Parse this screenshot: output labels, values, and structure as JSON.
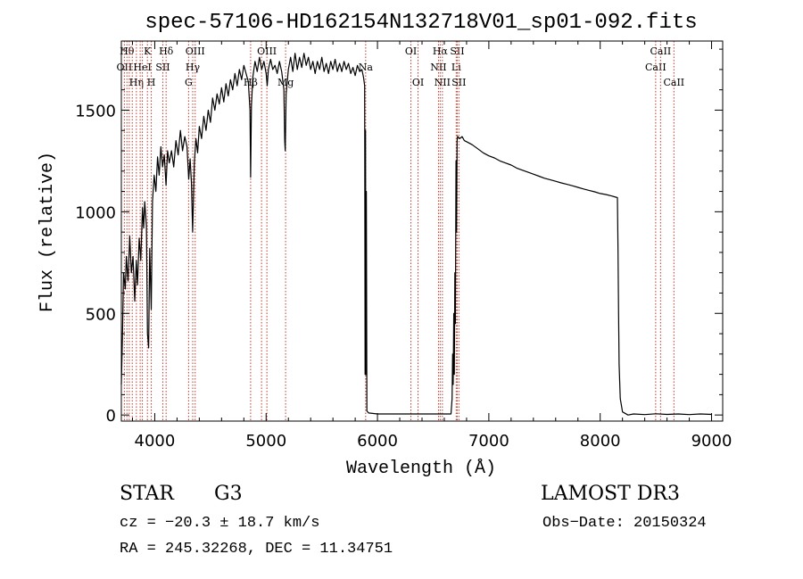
{
  "chart_data": {
    "type": "line",
    "title": "spec-57106-HD162154N132718V01_sp01-092.fits",
    "xlabel": "Wavelength (Å)",
    "ylabel": "Flux (relative)",
    "xlim": [
      3700,
      9100
    ],
    "ylim": [
      -30,
      1840
    ],
    "x_ticks": [
      {
        "value": 4000,
        "label": "4000"
      },
      {
        "value": 5000,
        "label": "5000"
      },
      {
        "value": 6000,
        "label": "6000"
      },
      {
        "value": 7000,
        "label": "7000"
      },
      {
        "value": 8000,
        "label": "8000"
      },
      {
        "value": 9000,
        "label": "9000"
      }
    ],
    "y_ticks": [
      {
        "value": 0,
        "label": "0"
      },
      {
        "value": 500,
        "label": "500"
      },
      {
        "value": 1000,
        "label": "1000"
      },
      {
        "value": 1500,
        "label": "1500"
      }
    ],
    "grid": false,
    "line_color": "#000000",
    "marker_line_color": "#c0392b",
    "series": [
      {
        "name": "flux",
        "points": [
          [
            3700,
            150
          ],
          [
            3710,
            380
          ],
          [
            3720,
            700
          ],
          [
            3735,
            620
          ],
          [
            3745,
            780
          ],
          [
            3760,
            660
          ],
          [
            3775,
            880
          ],
          [
            3790,
            700
          ],
          [
            3805,
            780
          ],
          [
            3820,
            560
          ],
          [
            3835,
            760
          ],
          [
            3845,
            640
          ],
          [
            3860,
            870
          ],
          [
            3875,
            760
          ],
          [
            3890,
            1020
          ],
          [
            3900,
            920
          ],
          [
            3910,
            1050
          ],
          [
            3925,
            930
          ],
          [
            3935,
            400
          ],
          [
            3945,
            330
          ],
          [
            3955,
            820
          ],
          [
            3968,
            520
          ],
          [
            3980,
            1050
          ],
          [
            3995,
            1180
          ],
          [
            4010,
            1100
          ],
          [
            4025,
            1270
          ],
          [
            4040,
            1180
          ],
          [
            4055,
            1320
          ],
          [
            4070,
            1220
          ],
          [
            4085,
            1280
          ],
          [
            4101,
            1130
          ],
          [
            4115,
            1300
          ],
          [
            4130,
            1240
          ],
          [
            4150,
            1300
          ],
          [
            4170,
            1220
          ],
          [
            4190,
            1350
          ],
          [
            4210,
            1280
          ],
          [
            4230,
            1400
          ],
          [
            4250,
            1300
          ],
          [
            4270,
            1370
          ],
          [
            4290,
            1320
          ],
          [
            4305,
            1160
          ],
          [
            4318,
            1260
          ],
          [
            4330,
            1140
          ],
          [
            4340,
            900
          ],
          [
            4355,
            1240
          ],
          [
            4370,
            1360
          ],
          [
            4385,
            1290
          ],
          [
            4400,
            1420
          ],
          [
            4420,
            1360
          ],
          [
            4440,
            1470
          ],
          [
            4460,
            1400
          ],
          [
            4480,
            1500
          ],
          [
            4500,
            1440
          ],
          [
            4520,
            1560
          ],
          [
            4540,
            1500
          ],
          [
            4560,
            1580
          ],
          [
            4580,
            1530
          ],
          [
            4600,
            1610
          ],
          [
            4620,
            1540
          ],
          [
            4640,
            1630
          ],
          [
            4660,
            1570
          ],
          [
            4680,
            1650
          ],
          [
            4700,
            1600
          ],
          [
            4720,
            1680
          ],
          [
            4740,
            1620
          ],
          [
            4760,
            1700
          ],
          [
            4780,
            1650
          ],
          [
            4800,
            1720
          ],
          [
            4820,
            1680
          ],
          [
            4840,
            1640
          ],
          [
            4855,
            1500
          ],
          [
            4861,
            1170
          ],
          [
            4868,
            1520
          ],
          [
            4880,
            1660
          ],
          [
            4900,
            1740
          ],
          [
            4920,
            1690
          ],
          [
            4940,
            1760
          ],
          [
            4960,
            1700
          ],
          [
            4980,
            1740
          ],
          [
            5000,
            1680
          ],
          [
            5010,
            1620
          ],
          [
            5020,
            1700
          ],
          [
            5040,
            1750
          ],
          [
            5060,
            1700
          ],
          [
            5080,
            1720
          ],
          [
            5100,
            1680
          ],
          [
            5120,
            1740
          ],
          [
            5140,
            1690
          ],
          [
            5160,
            1600
          ],
          [
            5167,
            1350
          ],
          [
            5172,
            1300
          ],
          [
            5180,
            1580
          ],
          [
            5200,
            1700
          ],
          [
            5220,
            1760
          ],
          [
            5240,
            1690
          ],
          [
            5260,
            1780
          ],
          [
            5280,
            1700
          ],
          [
            5300,
            1760
          ],
          [
            5320,
            1710
          ],
          [
            5340,
            1780
          ],
          [
            5360,
            1720
          ],
          [
            5380,
            1760
          ],
          [
            5400,
            1700
          ],
          [
            5420,
            1740
          ],
          [
            5440,
            1680
          ],
          [
            5460,
            1740
          ],
          [
            5480,
            1700
          ],
          [
            5500,
            1760
          ],
          [
            5520,
            1690
          ],
          [
            5540,
            1730
          ],
          [
            5560,
            1680
          ],
          [
            5580,
            1740
          ],
          [
            5600,
            1700
          ],
          [
            5620,
            1750
          ],
          [
            5640,
            1690
          ],
          [
            5660,
            1730
          ],
          [
            5680,
            1690
          ],
          [
            5700,
            1740
          ],
          [
            5720,
            1700
          ],
          [
            5740,
            1730
          ],
          [
            5760,
            1680
          ],
          [
            5780,
            1710
          ],
          [
            5800,
            1670
          ],
          [
            5820,
            1720
          ],
          [
            5840,
            1690
          ],
          [
            5860,
            1700
          ],
          [
            5875,
            1660
          ],
          [
            5885,
            1620
          ],
          [
            5889,
            200
          ],
          [
            5893,
            1400
          ],
          [
            5896,
            200
          ],
          [
            5900,
            1100
          ],
          [
            5905,
            20
          ],
          [
            5920,
            10
          ],
          [
            6000,
            5
          ],
          [
            6200,
            5
          ],
          [
            6400,
            5
          ],
          [
            6550,
            5
          ],
          [
            6600,
            5
          ],
          [
            6660,
            5
          ],
          [
            6670,
            80
          ],
          [
            6675,
            300
          ],
          [
            6680,
            150
          ],
          [
            6685,
            500
          ],
          [
            6690,
            200
          ],
          [
            6695,
            700
          ],
          [
            6700,
            450
          ],
          [
            6705,
            1250
          ],
          [
            6710,
            900
          ],
          [
            6715,
            1350
          ],
          [
            6720,
            1370
          ],
          [
            6740,
            1360
          ],
          [
            6760,
            1370
          ],
          [
            6780,
            1350
          ],
          [
            6800,
            1345
          ],
          [
            6850,
            1330
          ],
          [
            6900,
            1310
          ],
          [
            6950,
            1290
          ],
          [
            7000,
            1275
          ],
          [
            7050,
            1265
          ],
          [
            7100,
            1250
          ],
          [
            7150,
            1240
          ],
          [
            7200,
            1230
          ],
          [
            7250,
            1215
          ],
          [
            7300,
            1205
          ],
          [
            7350,
            1195
          ],
          [
            7400,
            1185
          ],
          [
            7450,
            1175
          ],
          [
            7500,
            1165
          ],
          [
            7550,
            1158
          ],
          [
            7600,
            1150
          ],
          [
            7650,
            1142
          ],
          [
            7700,
            1135
          ],
          [
            7750,
            1128
          ],
          [
            7800,
            1120
          ],
          [
            7850,
            1112
          ],
          [
            7900,
            1105
          ],
          [
            7950,
            1098
          ],
          [
            8000,
            1090
          ],
          [
            8050,
            1085
          ],
          [
            8100,
            1078
          ],
          [
            8140,
            1072
          ],
          [
            8155,
            1070
          ],
          [
            8160,
            800
          ],
          [
            8165,
            500
          ],
          [
            8170,
            250
          ],
          [
            8180,
            80
          ],
          [
            8200,
            15
          ],
          [
            8250,
            0
          ],
          [
            8300,
            5
          ],
          [
            8400,
            2
          ],
          [
            8500,
            6
          ],
          [
            8600,
            3
          ],
          [
            8700,
            5
          ],
          [
            8800,
            2
          ],
          [
            8900,
            5
          ],
          [
            9000,
            3
          ]
        ]
      }
    ],
    "line_markers": [
      {
        "x": 3727,
        "label": "OII",
        "row": 1
      },
      {
        "x": 3750,
        "label": "Hθ",
        "row": 0
      },
      {
        "x": 3771,
        "label": "",
        "row": -1
      },
      {
        "x": 3798,
        "label": "",
        "row": -1
      },
      {
        "x": 3835,
        "label": "Hη",
        "row": 2
      },
      {
        "x": 3869,
        "label": "",
        "row": -1
      },
      {
        "x": 3889,
        "label": "HeI",
        "row": 1
      },
      {
        "x": 3934,
        "label": "K",
        "row": 0
      },
      {
        "x": 3969,
        "label": "H",
        "row": 2
      },
      {
        "x": 4072,
        "label": "SII",
        "row": 1
      },
      {
        "x": 4102,
        "label": "Hδ",
        "row": 0
      },
      {
        "x": 4304,
        "label": "G",
        "row": 2
      },
      {
        "x": 4341,
        "label": "Hγ",
        "row": 1
      },
      {
        "x": 4363,
        "label": "OIII",
        "row": 0
      },
      {
        "x": 4861,
        "label": "Hβ",
        "row": 2
      },
      {
        "x": 4959,
        "label": "",
        "row": -1
      },
      {
        "x": 5007,
        "label": "OIII",
        "row": 0
      },
      {
        "x": 5175,
        "label": "Mg",
        "row": 2
      },
      {
        "x": 5894,
        "label": "Na",
        "row": 1
      },
      {
        "x": 6300,
        "label": "OI",
        "row": 0
      },
      {
        "x": 6364,
        "label": "OI",
        "row": 2
      },
      {
        "x": 6548,
        "label": "NII",
        "row": 1
      },
      {
        "x": 6563,
        "label": "Hα",
        "row": 0
      },
      {
        "x": 6583,
        "label": "NII",
        "row": 2
      },
      {
        "x": 6707,
        "label": "Li",
        "row": 1
      },
      {
        "x": 6716,
        "label": "SII",
        "row": 0
      },
      {
        "x": 6731,
        "label": "SII",
        "row": 2
      },
      {
        "x": 8498,
        "label": "CaII",
        "row": 1
      },
      {
        "x": 8542,
        "label": "CaII",
        "row": 0
      },
      {
        "x": 8662,
        "label": "CaII",
        "row": 2
      }
    ]
  },
  "info": {
    "object_type": "STAR",
    "subclass": "G3",
    "survey": "LAMOST DR3",
    "redshift_text": "cz = −20.3 ± 18.7 km/s",
    "obs_date_text": "Obs−Date: 20150324",
    "coords_text": "RA = 245.32268, DEC =  11.34751"
  }
}
